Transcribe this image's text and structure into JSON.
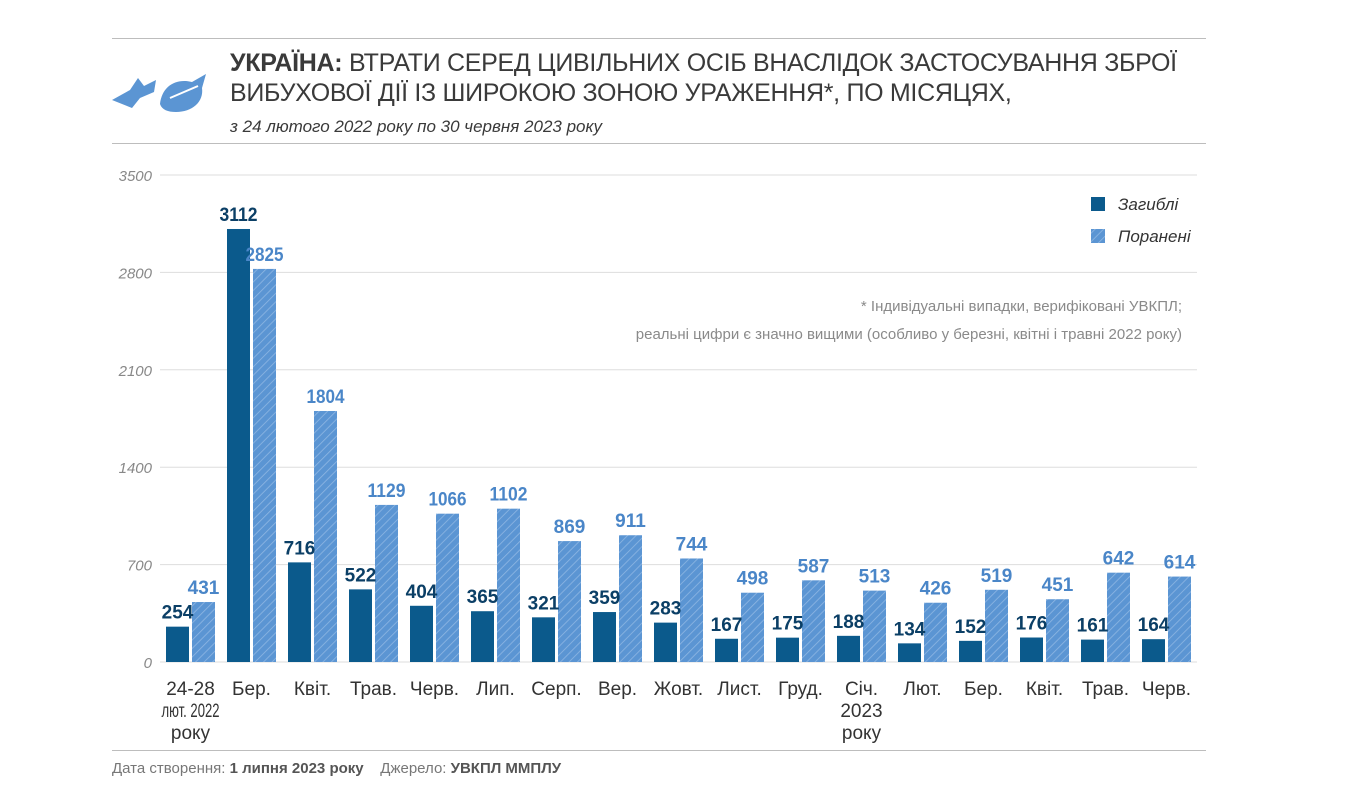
{
  "header": {
    "title_bold": "УКРАЇНА:",
    "title_line1": "ВТРАТИ СЕРЕД ЦИВІЛЬНИХ ОСІБ ВНАСЛІДОК ЗАСТОСУВАННЯ ЗБРОЇ",
    "title_line2": "ВИБУХОВОЇ ДІЇ ІЗ ШИРОКОЮ ЗОНОЮ УРАЖЕННЯ*, ПО МІСЯЦЯХ,",
    "subtitle": "з 24 лютого 2022 року по 30 червня 2023 року"
  },
  "note": {
    "line1": "* Індивідуальні випадки, верифіковані УВКПЛ;",
    "line2": "реальні цифри є значно вищими (особливо у березні, квітні і травні 2022 року)"
  },
  "footer": {
    "created_label": "Дата створення:",
    "created_value": "1 липня 2023 року",
    "source_label": "Джерело:",
    "source_value": "УВКПЛ ММПЛУ"
  },
  "colors": {
    "killed": "#0b5a8c",
    "injured": "#5b95d3",
    "grid": "#dddddd",
    "value_text_killed": "#0b3f66",
    "value_text_injured": "#4a86c8"
  },
  "chart_data": {
    "type": "bar",
    "categories": [
      [
        "24-28",
        "лют. 2022",
        "року"
      ],
      [
        "Бер."
      ],
      [
        "Квіт."
      ],
      [
        "Трав."
      ],
      [
        "Черв."
      ],
      [
        "Лип."
      ],
      [
        "Серп."
      ],
      [
        "Вер."
      ],
      [
        "Жовт."
      ],
      [
        "Лист."
      ],
      [
        "Груд."
      ],
      [
        "Січ.",
        "2023",
        "року"
      ],
      [
        "Лют."
      ],
      [
        "Бер."
      ],
      [
        "Квіт."
      ],
      [
        "Трав."
      ],
      [
        "Черв."
      ]
    ],
    "series": [
      {
        "name": "Загиблі",
        "values": [
          254,
          3112,
          716,
          522,
          404,
          365,
          321,
          359,
          283,
          167,
          175,
          188,
          134,
          152,
          176,
          161,
          164
        ]
      },
      {
        "name": "Поранені",
        "values": [
          431,
          2825,
          1804,
          1129,
          1066,
          1102,
          869,
          911,
          744,
          498,
          587,
          513,
          426,
          519,
          451,
          642,
          614
        ]
      }
    ],
    "y_ticks": [
      "0",
      "700",
      "1400",
      "2100",
      "2800",
      "3500"
    ],
    "ylim": [
      0,
      3500
    ],
    "grid": true,
    "legend_position": "top-right"
  }
}
